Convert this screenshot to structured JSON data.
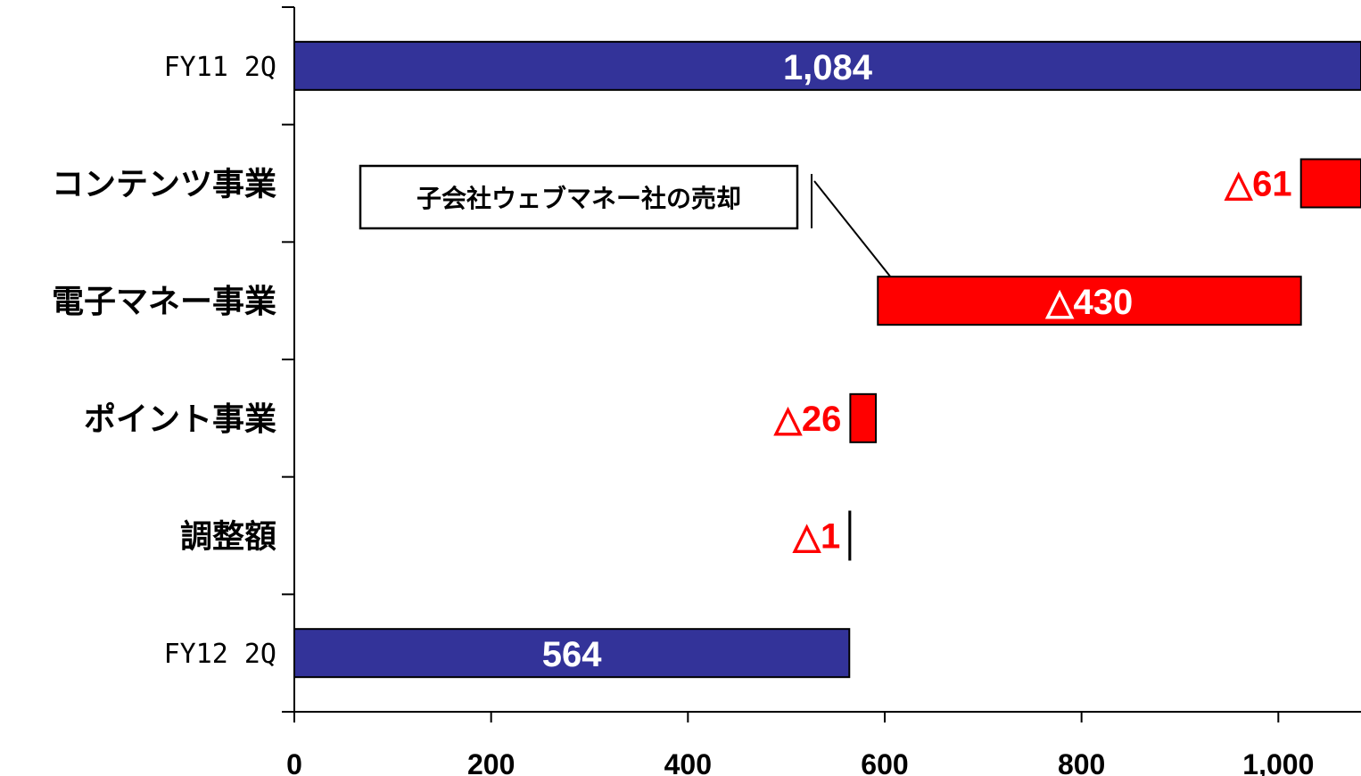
{
  "chart_data": {
    "type": "bar",
    "subtype": "horizontal-waterfall",
    "title": "",
    "xlabel": "",
    "ylabel": "",
    "xlim": [
      0,
      1084
    ],
    "x_ticks": [
      0,
      200,
      400,
      600,
      800,
      1000
    ],
    "x_tick_labels": [
      "0",
      "200",
      "400",
      "600",
      "800",
      "1,000"
    ],
    "grid": false,
    "categories": [
      "FY11 2Q",
      "コンテンツ事業",
      "電子マネー事業",
      "ポイント事業",
      "調整額",
      "FY12 2Q"
    ],
    "bars": [
      {
        "category": "FY11 2Q",
        "kind": "total",
        "start": 0,
        "end": 1084,
        "label": "1,084",
        "label_pos": "inside"
      },
      {
        "category": "コンテンツ事業",
        "kind": "decrease",
        "start": 1023,
        "end": 1084,
        "label": "△61",
        "label_pos": "left"
      },
      {
        "category": "電子マネー事業",
        "kind": "decrease",
        "start": 593,
        "end": 1023,
        "label": "△430",
        "label_pos": "inside"
      },
      {
        "category": "ポイント事業",
        "kind": "decrease",
        "start": 565,
        "end": 591,
        "label": "△26",
        "label_pos": "left"
      },
      {
        "category": "調整額",
        "kind": "decrease",
        "start": 564,
        "end": 565,
        "label": "△1",
        "label_pos": "left"
      },
      {
        "category": "FY12 2Q",
        "kind": "total",
        "start": 0,
        "end": 564,
        "label": "564",
        "label_pos": "inside"
      }
    ],
    "annotation": {
      "text": "子会社ウェブマネー社の売却",
      "target": "電子マネー事業"
    },
    "colors": {
      "total": "#333399",
      "decrease": "#ff0000",
      "outside_label": "#ff0000",
      "inside_label": "#ffffff"
    }
  }
}
